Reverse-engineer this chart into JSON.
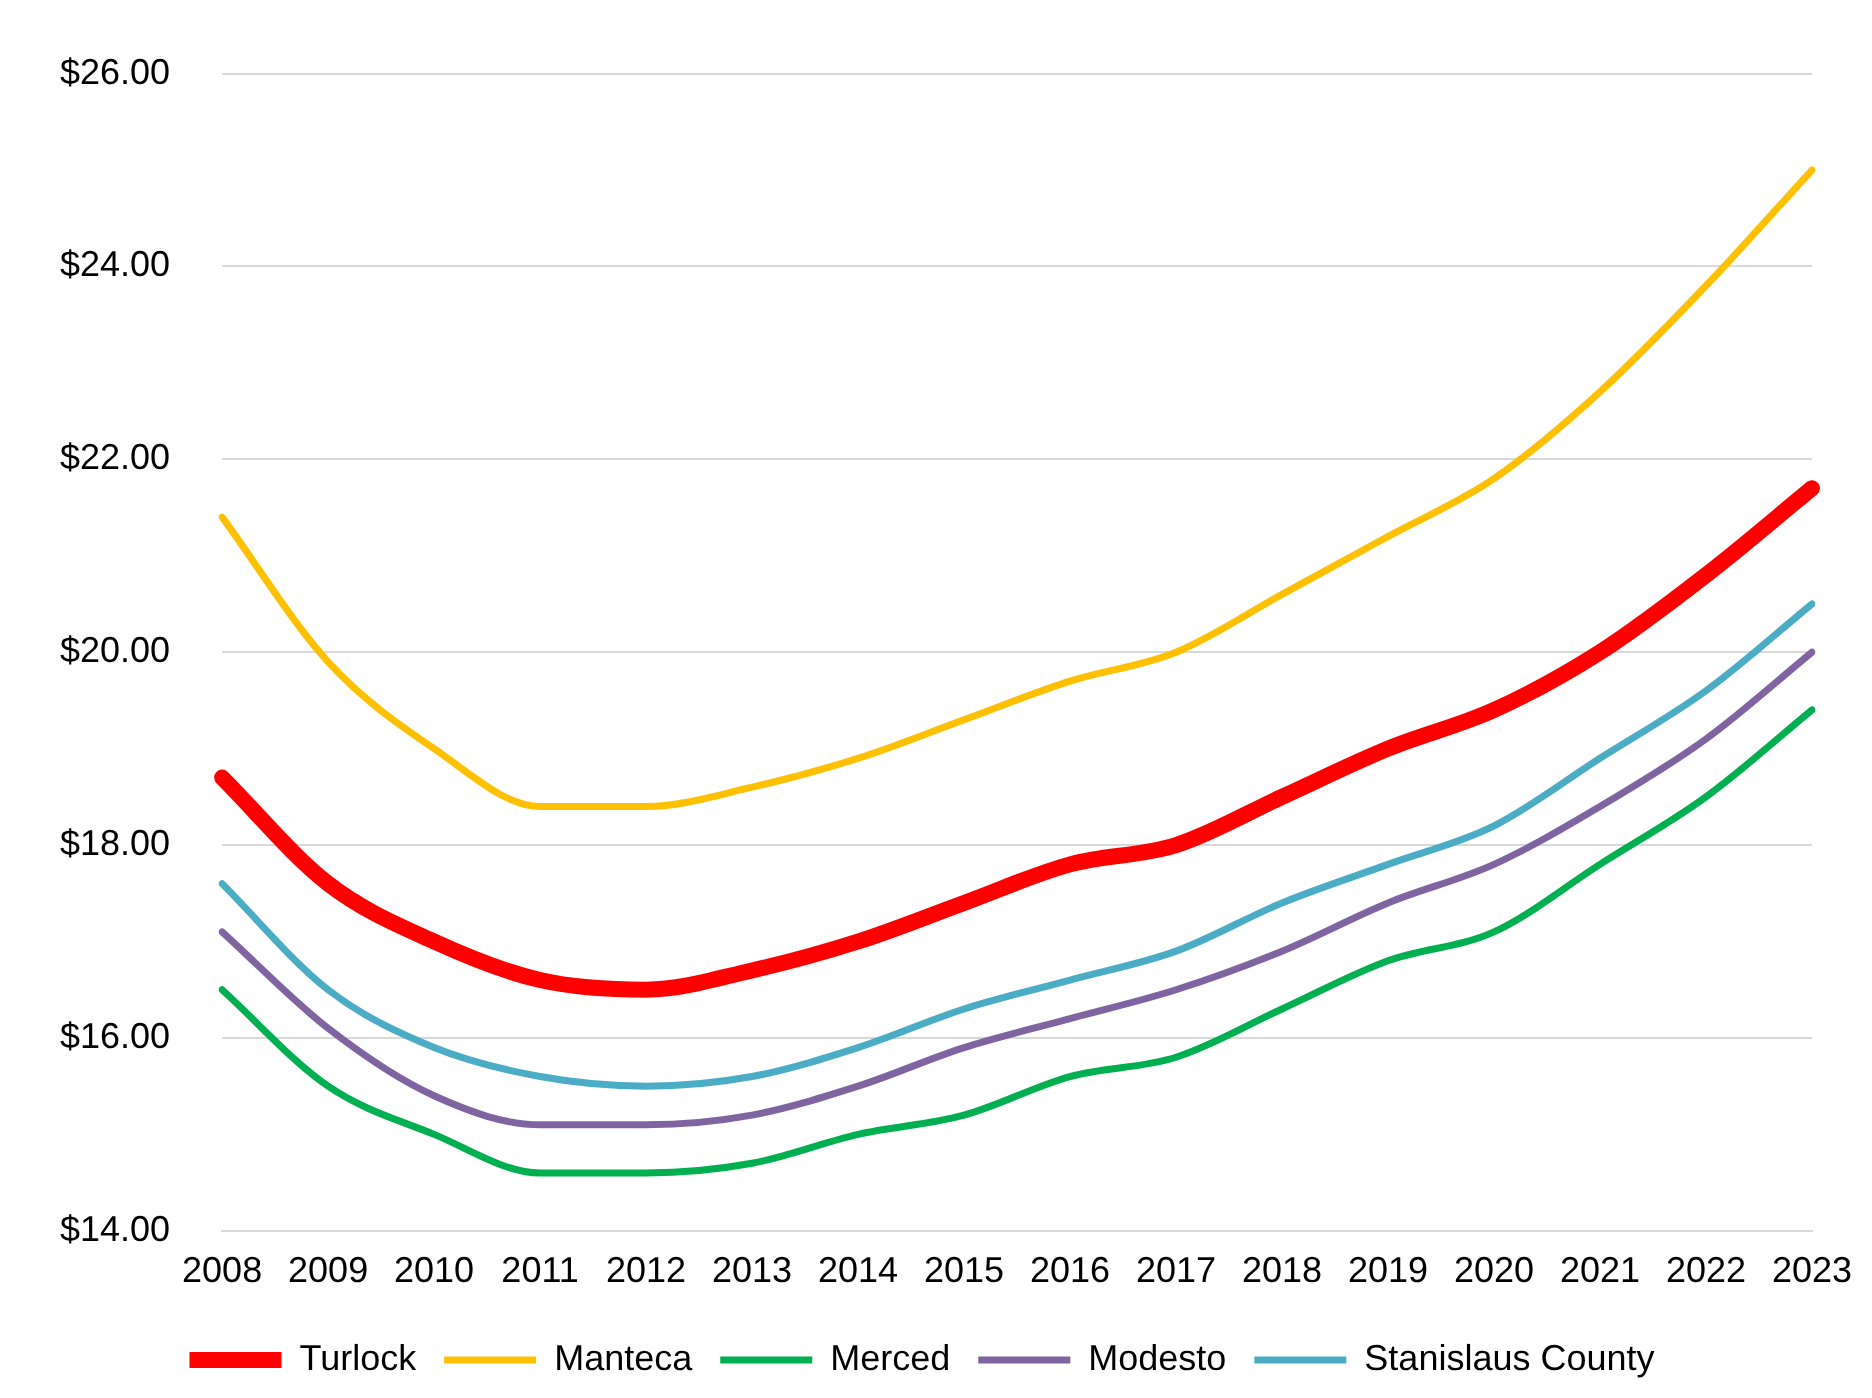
{
  "chart_data": {
    "type": "line",
    "categories": [
      "2008",
      "2009",
      "2010",
      "2011",
      "2012",
      "2013",
      "2014",
      "2015",
      "2016",
      "2017",
      "2018",
      "2019",
      "2020",
      "2021",
      "2022",
      "2023"
    ],
    "series": [
      {
        "name": "Turlock",
        "color": "#ff0000",
        "values": [
          18.7,
          17.6,
          17.0,
          16.6,
          16.5,
          16.7,
          17.0,
          17.4,
          17.8,
          18.0,
          18.5,
          19.0,
          19.4,
          20.0,
          20.8,
          21.7
        ]
      },
      {
        "name": "Manteca",
        "color": "#ffc000",
        "values": [
          21.4,
          19.9,
          19.0,
          18.4,
          18.4,
          18.6,
          18.9,
          19.3,
          19.7,
          20.0,
          20.6,
          21.2,
          21.8,
          22.7,
          23.8,
          25.0
        ]
      },
      {
        "name": "Merced",
        "color": "#00b050",
        "values": [
          16.5,
          15.5,
          15.0,
          14.6,
          14.6,
          14.7,
          15.0,
          15.2,
          15.6,
          15.8,
          16.3,
          16.8,
          17.1,
          17.8,
          18.5,
          19.4
        ]
      },
      {
        "name": "Modesto",
        "color": "#8064a2",
        "values": [
          17.1,
          16.1,
          15.4,
          15.1,
          15.1,
          15.2,
          15.5,
          15.9,
          16.2,
          16.5,
          16.9,
          17.4,
          17.8,
          18.4,
          19.1,
          20.0
        ]
      },
      {
        "name": "Stanislaus County",
        "color": "#4bacc6",
        "values": [
          17.6,
          16.5,
          15.9,
          15.6,
          15.5,
          15.6,
          15.9,
          16.3,
          16.6,
          16.9,
          17.4,
          17.8,
          18.2,
          18.9,
          19.6,
          20.5
        ]
      }
    ],
    "ylim": [
      14,
      26
    ],
    "yticks": [
      {
        "value": 14,
        "label": "$14.00"
      },
      {
        "value": 16,
        "label": "$16.00"
      },
      {
        "value": 18,
        "label": "$18.00"
      },
      {
        "value": 20,
        "label": "$20.00"
      },
      {
        "value": 22,
        "label": "$22.00"
      },
      {
        "value": 24,
        "label": "$24.00"
      },
      {
        "value": 26,
        "label": "$26.00"
      }
    ],
    "grid": "y",
    "legend": "bottom",
    "marker": "none",
    "line_style": "solid"
  }
}
